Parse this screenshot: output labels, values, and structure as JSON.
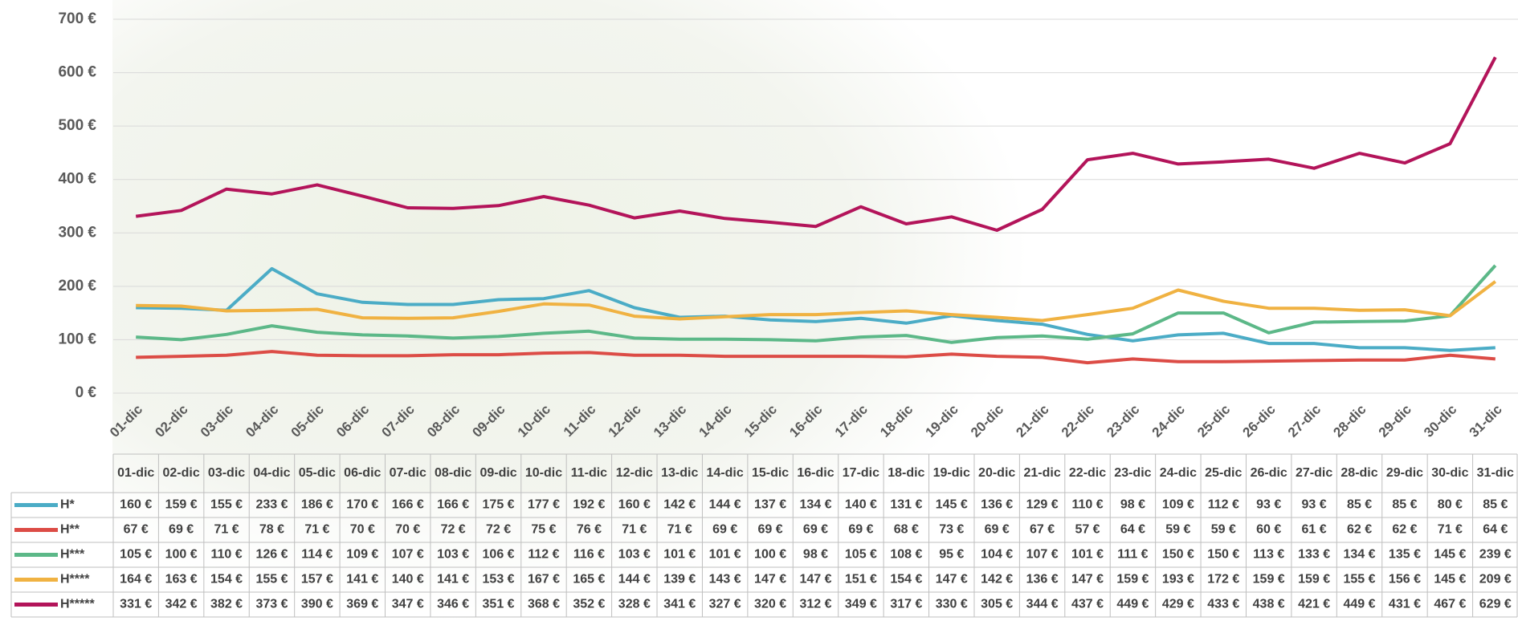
{
  "chart_data": {
    "type": "line",
    "categories": [
      "01-dic",
      "02-dic",
      "03-dic",
      "04-dic",
      "05-dic",
      "06-dic",
      "07-dic",
      "08-dic",
      "09-dic",
      "10-dic",
      "11-dic",
      "12-dic",
      "13-dic",
      "14-dic",
      "15-dic",
      "16-dic",
      "17-dic",
      "18-dic",
      "19-dic",
      "20-dic",
      "21-dic",
      "22-dic",
      "23-dic",
      "24-dic",
      "25-dic",
      "26-dic",
      "27-dic",
      "28-dic",
      "29-dic",
      "30-dic",
      "31-dic"
    ],
    "ylim": [
      0,
      700
    ],
    "yticks": [
      {
        "value": 0,
        "label": "0 €"
      },
      {
        "value": 100,
        "label": "100 €"
      },
      {
        "value": 200,
        "label": "200 €"
      },
      {
        "value": 300,
        "label": "300 €"
      },
      {
        "value": 400,
        "label": "400 €"
      },
      {
        "value": 500,
        "label": "500 €"
      },
      {
        "value": 600,
        "label": "600 €"
      },
      {
        "value": 700,
        "label": "700 €"
      }
    ],
    "grid": true,
    "series": [
      {
        "name": "H*",
        "color": "#4bacc6",
        "values": [
          160,
          159,
          155,
          233,
          186,
          170,
          166,
          166,
          175,
          177,
          192,
          160,
          142,
          144,
          137,
          134,
          140,
          131,
          145,
          136,
          129,
          110,
          98,
          109,
          112,
          93,
          93,
          85,
          85,
          80,
          85
        ],
        "value_labels": [
          "160 €",
          "159 €",
          "155 €",
          "233 €",
          "186 €",
          "170 €",
          "166 €",
          "166 €",
          "175 €",
          "177 €",
          "192 €",
          "160 €",
          "142 €",
          "144 €",
          "137 €",
          "134 €",
          "140 €",
          "131 €",
          "145 €",
          "136 €",
          "129 €",
          "110 €",
          "98 €",
          "109 €",
          "112 €",
          "93 €",
          "93 €",
          "85 €",
          "85 €",
          "80 €",
          "85 €"
        ]
      },
      {
        "name": "H**",
        "color": "#dc4c46",
        "values": [
          67,
          69,
          71,
          78,
          71,
          70,
          70,
          72,
          72,
          75,
          76,
          71,
          71,
          69,
          69,
          69,
          69,
          68,
          73,
          69,
          67,
          57,
          64,
          59,
          59,
          60,
          61,
          62,
          62,
          71,
          64
        ],
        "value_labels": [
          "67 €",
          "69 €",
          "71 €",
          "78 €",
          "71 €",
          "70 €",
          "70 €",
          "72 €",
          "72 €",
          "75 €",
          "76 €",
          "71 €",
          "71 €",
          "69 €",
          "69 €",
          "69 €",
          "69 €",
          "68 €",
          "73 €",
          "69 €",
          "67 €",
          "57 €",
          "64 €",
          "59 €",
          "59 €",
          "60 €",
          "61 €",
          "62 €",
          "62 €",
          "71 €",
          "64 €"
        ]
      },
      {
        "name": "H***",
        "color": "#5cb888",
        "values": [
          105,
          100,
          110,
          126,
          114,
          109,
          107,
          103,
          106,
          112,
          116,
          103,
          101,
          101,
          100,
          98,
          105,
          108,
          95,
          104,
          107,
          101,
          111,
          150,
          150,
          113,
          133,
          134,
          135,
          145,
          239
        ],
        "value_labels": [
          "105 €",
          "100 €",
          "110 €",
          "126 €",
          "114 €",
          "109 €",
          "107 €",
          "103 €",
          "106 €",
          "112 €",
          "116 €",
          "103 €",
          "101 €",
          "101 €",
          "100 €",
          "98 €",
          "105 €",
          "108 €",
          "95 €",
          "104 €",
          "107 €",
          "101 €",
          "111 €",
          "150 €",
          "150 €",
          "113 €",
          "133 €",
          "134 €",
          "135 €",
          "145 €",
          "239 €"
        ]
      },
      {
        "name": "H****",
        "color": "#f0b242",
        "values": [
          164,
          163,
          154,
          155,
          157,
          141,
          140,
          141,
          153,
          167,
          165,
          144,
          139,
          143,
          147,
          147,
          151,
          154,
          147,
          142,
          136,
          147,
          159,
          193,
          172,
          159,
          159,
          155,
          156,
          145,
          209
        ],
        "value_labels": [
          "164 €",
          "163 €",
          "154 €",
          "155 €",
          "157 €",
          "141 €",
          "140 €",
          "141 €",
          "153 €",
          "167 €",
          "165 €",
          "144 €",
          "139 €",
          "143 €",
          "147 €",
          "147 €",
          "151 €",
          "154 €",
          "147 €",
          "142 €",
          "136 €",
          "147 €",
          "159 €",
          "193 €",
          "172 €",
          "159 €",
          "159 €",
          "155 €",
          "156 €",
          "145 €",
          "209 €"
        ]
      },
      {
        "name": "H*****",
        "color": "#b3145a",
        "values": [
          331,
          342,
          382,
          373,
          390,
          369,
          347,
          346,
          351,
          368,
          352,
          328,
          341,
          327,
          320,
          312,
          349,
          317,
          330,
          305,
          344,
          437,
          449,
          429,
          433,
          438,
          421,
          449,
          431,
          467,
          629
        ],
        "value_labels": [
          "331 €",
          "342 €",
          "382 €",
          "373 €",
          "390 €",
          "369 €",
          "347 €",
          "346 €",
          "351 €",
          "368 €",
          "352 €",
          "328 €",
          "341 €",
          "327 €",
          "320 €",
          "312 €",
          "349 €",
          "317 €",
          "330 €",
          "305 €",
          "344 €",
          "437 €",
          "449 €",
          "429 €",
          "433 €",
          "438 €",
          "421 €",
          "449 €",
          "431 €",
          "467 €",
          "629 €"
        ]
      }
    ]
  }
}
